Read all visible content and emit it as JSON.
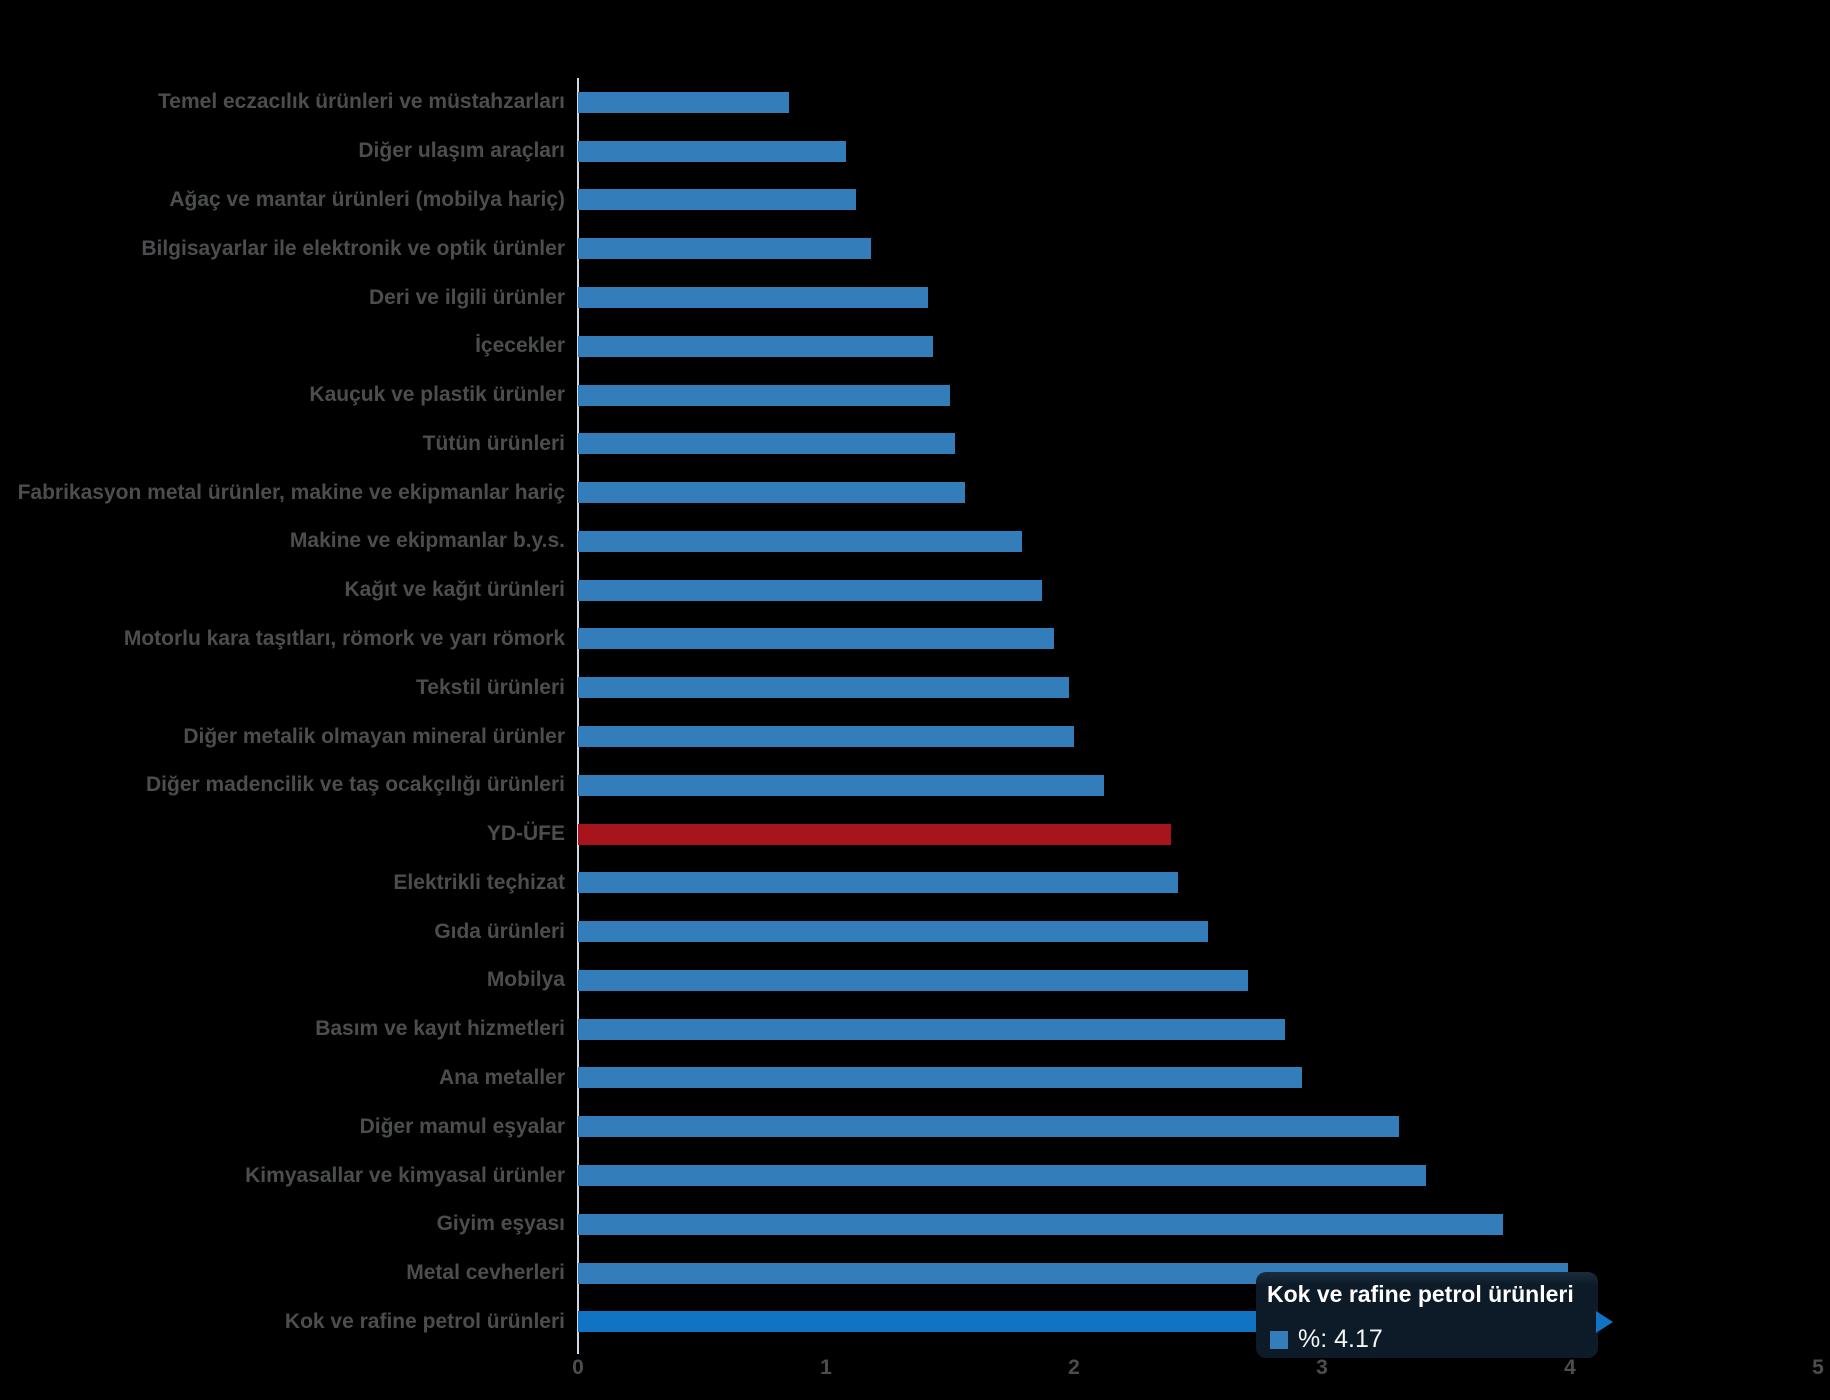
{
  "chart_data": {
    "type": "bar",
    "orientation": "horizontal",
    "title": "",
    "xlabel": "",
    "ylabel": "",
    "xlim": [
      0,
      5
    ],
    "x_ticks": [
      "0",
      "1",
      "2",
      "3",
      "4",
      "5"
    ],
    "grid": false,
    "legend": false,
    "series_label": "%",
    "points": [
      {
        "category": "Temel eczacılık ürünleri ve müstahzarları",
        "value": 0.85,
        "role": "normal"
      },
      {
        "category": "Diğer ulaşım araçları",
        "value": 1.08,
        "role": "normal"
      },
      {
        "category": "Ağaç ve mantar ürünleri (mobilya hariç)",
        "value": 1.12,
        "role": "normal"
      },
      {
        "category": "Bilgisayarlar ile elektronik ve optik ürünler",
        "value": 1.18,
        "role": "normal"
      },
      {
        "category": "Deri ve ilgili ürünler",
        "value": 1.41,
        "role": "normal"
      },
      {
        "category": "İçecekler",
        "value": 1.43,
        "role": "normal"
      },
      {
        "category": "Kauçuk ve plastik ürünler",
        "value": 1.5,
        "role": "normal"
      },
      {
        "category": "Tütün ürünleri",
        "value": 1.52,
        "role": "normal"
      },
      {
        "category": "Fabrikasyon metal ürünler, makine ve ekipmanlar hariç",
        "value": 1.56,
        "role": "normal"
      },
      {
        "category": "Makine ve ekipmanlar b.y.s.",
        "value": 1.79,
        "role": "normal"
      },
      {
        "category": "Kağıt ve kağıt ürünleri",
        "value": 1.87,
        "role": "normal"
      },
      {
        "category": "Motorlu kara taşıtları, römork ve yarı römork",
        "value": 1.92,
        "role": "normal"
      },
      {
        "category": "Tekstil ürünleri",
        "value": 1.98,
        "role": "normal"
      },
      {
        "category": "Diğer metalik olmayan mineral ürünler",
        "value": 2.0,
        "role": "normal"
      },
      {
        "category": "Diğer madencilik ve taş ocakçılığı ürünleri",
        "value": 2.12,
        "role": "normal"
      },
      {
        "category": "YD-ÜFE",
        "value": 2.39,
        "role": "highlight"
      },
      {
        "category": "Elektrikli teçhizat",
        "value": 2.42,
        "role": "normal"
      },
      {
        "category": "Gıda ürünleri",
        "value": 2.54,
        "role": "normal"
      },
      {
        "category": "Mobilya",
        "value": 2.7,
        "role": "normal"
      },
      {
        "category": "Basım ve kayıt hizmetleri",
        "value": 2.85,
        "role": "normal"
      },
      {
        "category": "Ana metaller",
        "value": 2.92,
        "role": "normal"
      },
      {
        "category": "Diğer mamul eşyalar",
        "value": 3.31,
        "role": "normal"
      },
      {
        "category": "Kimyasallar ve kimyasal ürünler",
        "value": 3.42,
        "role": "normal"
      },
      {
        "category": "Giyim eşyası",
        "value": 3.73,
        "role": "normal"
      },
      {
        "category": "Metal cevherleri",
        "value": 3.99,
        "role": "normal"
      },
      {
        "category": "Kok ve rafine petrol ürünleri",
        "value": 4.17,
        "role": "hovered"
      }
    ],
    "tooltip": {
      "title": "Kok ve rafine petrol ürünleri",
      "value_label": "%: 4.17",
      "value": 4.17
    },
    "colors": {
      "background": "#000000",
      "bar": "#337dbb",
      "bar_hover": "#1173c4",
      "bar_highlight_red": "#a8141c",
      "axis_line": "#ccd8e3",
      "label_text": "#4b4d4f",
      "tick_text": "#4b4d4f",
      "tooltip_bg": "#0d1b28",
      "tooltip_text": "#ffffff",
      "tooltip_swatch": "#337dbb"
    }
  }
}
